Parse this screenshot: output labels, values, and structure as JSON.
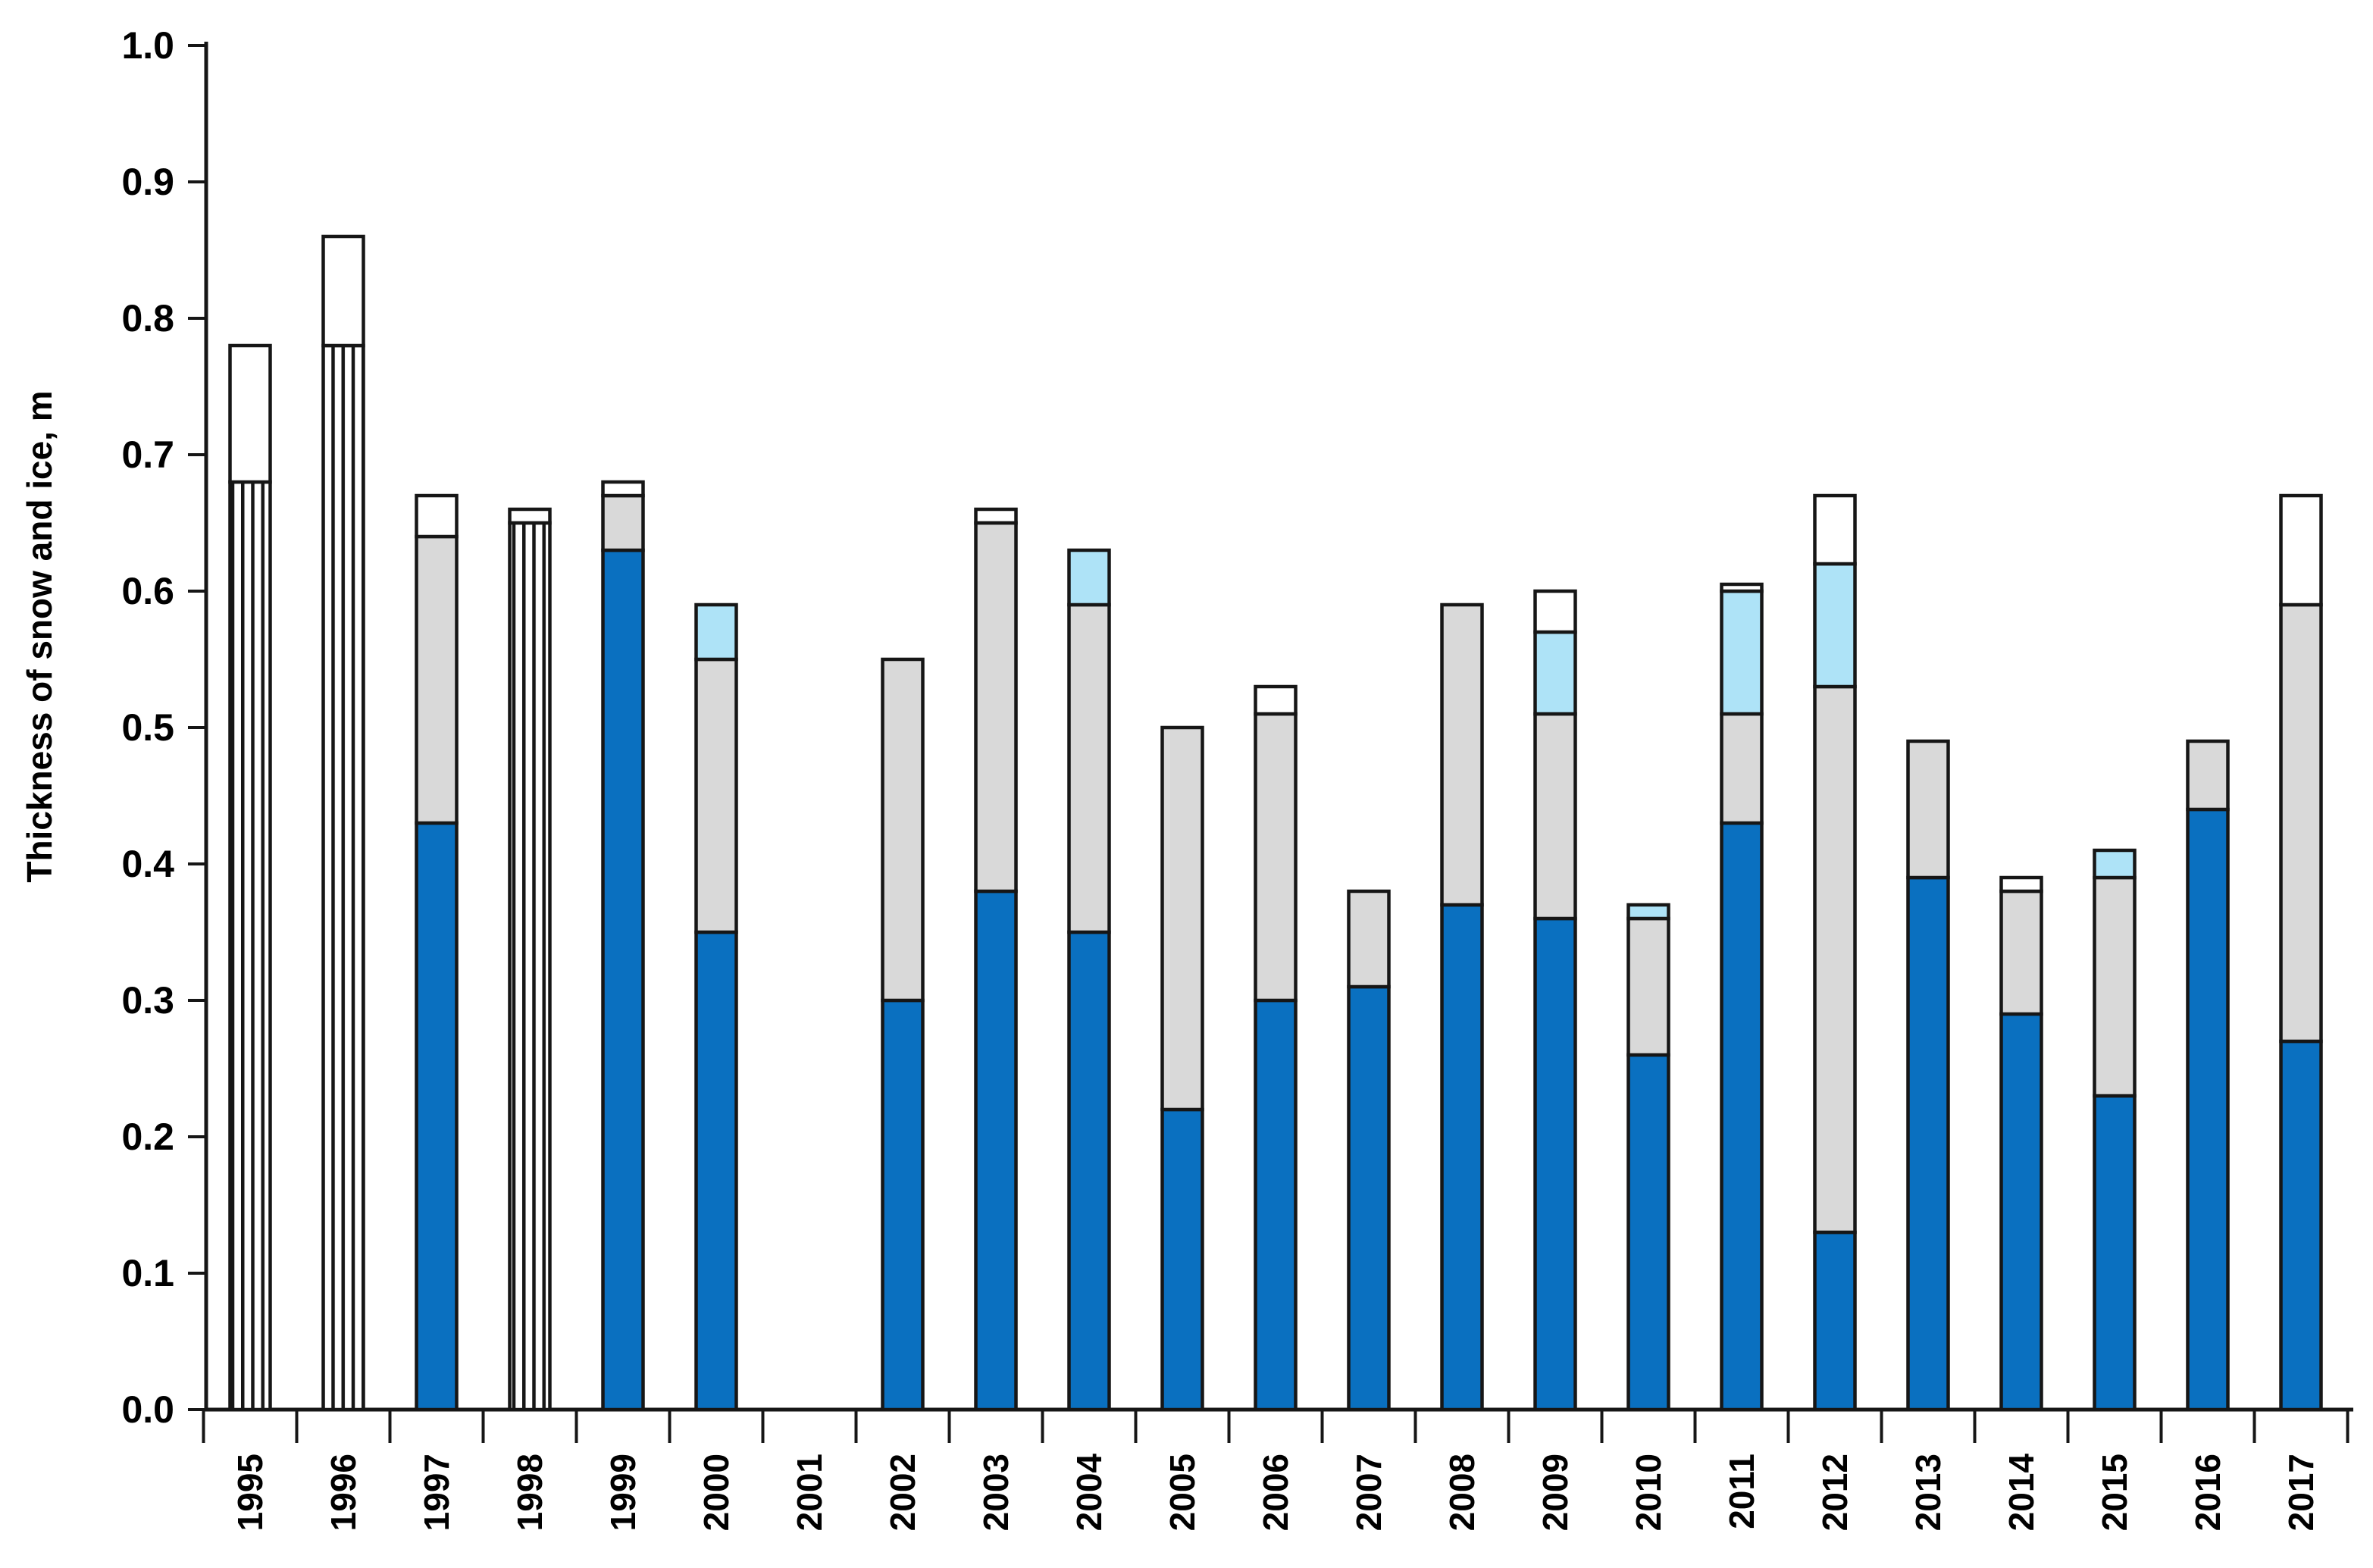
{
  "chart_data": {
    "type": "bar",
    "stacked": true,
    "title": "",
    "xlabel": "",
    "ylabel": "Thickness of snow and ice, m",
    "ylim": [
      0.0,
      1.0
    ],
    "y_tick_step": 0.1,
    "y_tick_labels": [
      "1.0",
      "0.9",
      "0.8",
      "0.7",
      "0.6",
      "0.5",
      "0.4",
      "0.3",
      "0.2",
      "0.1",
      "0.0"
    ],
    "grid": false,
    "legend": "none",
    "x_tick_label_rotation_deg": -90,
    "missing_years": [
      "2001"
    ],
    "colors": {
      "blue": "#0a70c0",
      "gray": "#d9d9d9",
      "light_blue": "#aee3f7",
      "white": "#ffffff",
      "hatched": "white with vertical black stripes",
      "border": "#161616"
    },
    "categories": [
      "1995",
      "1996",
      "1997",
      "1998",
      "1999",
      "2000",
      "2001",
      "2002",
      "2003",
      "2004",
      "2005",
      "2006",
      "2007",
      "2008",
      "2009",
      "2010",
      "2011",
      "2012",
      "2013",
      "2014",
      "2015",
      "2016",
      "2017"
    ],
    "bars": [
      {
        "year": "1995",
        "total": 0.78,
        "segments": [
          {
            "color": "hatched",
            "value": 0.68
          },
          {
            "color": "white",
            "value": 0.1
          }
        ]
      },
      {
        "year": "1996",
        "total": 0.86,
        "segments": [
          {
            "color": "hatched",
            "value": 0.78
          },
          {
            "color": "white",
            "value": 0.08
          }
        ]
      },
      {
        "year": "1997",
        "total": 0.67,
        "segments": [
          {
            "color": "blue",
            "value": 0.43
          },
          {
            "color": "gray",
            "value": 0.21
          },
          {
            "color": "white",
            "value": 0.03
          }
        ]
      },
      {
        "year": "1998",
        "total": 0.66,
        "segments": [
          {
            "color": "hatched",
            "value": 0.65
          },
          {
            "color": "white",
            "value": 0.01
          }
        ]
      },
      {
        "year": "1999",
        "total": 0.68,
        "segments": [
          {
            "color": "blue",
            "value": 0.63
          },
          {
            "color": "gray",
            "value": 0.04
          },
          {
            "color": "white",
            "value": 0.01
          }
        ]
      },
      {
        "year": "2000",
        "total": 0.59,
        "segments": [
          {
            "color": "blue",
            "value": 0.35
          },
          {
            "color": "gray",
            "value": 0.2
          },
          {
            "color": "light_blue",
            "value": 0.04
          }
        ]
      },
      {
        "year": "2001",
        "total": 0.0,
        "segments": []
      },
      {
        "year": "2002",
        "total": 0.55,
        "segments": [
          {
            "color": "blue",
            "value": 0.3
          },
          {
            "color": "gray",
            "value": 0.25
          }
        ]
      },
      {
        "year": "2003",
        "total": 0.66,
        "segments": [
          {
            "color": "blue",
            "value": 0.38
          },
          {
            "color": "gray",
            "value": 0.27
          },
          {
            "color": "white",
            "value": 0.01
          }
        ]
      },
      {
        "year": "2004",
        "total": 0.63,
        "segments": [
          {
            "color": "blue",
            "value": 0.35
          },
          {
            "color": "gray",
            "value": 0.24
          },
          {
            "color": "light_blue",
            "value": 0.04
          }
        ]
      },
      {
        "year": "2005",
        "total": 0.5,
        "segments": [
          {
            "color": "blue",
            "value": 0.22
          },
          {
            "color": "gray",
            "value": 0.28
          }
        ]
      },
      {
        "year": "2006",
        "total": 0.53,
        "segments": [
          {
            "color": "blue",
            "value": 0.3
          },
          {
            "color": "gray",
            "value": 0.21
          },
          {
            "color": "white",
            "value": 0.02
          }
        ]
      },
      {
        "year": "2007",
        "total": 0.38,
        "segments": [
          {
            "color": "blue",
            "value": 0.31
          },
          {
            "color": "gray",
            "value": 0.07
          }
        ]
      },
      {
        "year": "2008",
        "total": 0.59,
        "segments": [
          {
            "color": "blue",
            "value": 0.37
          },
          {
            "color": "gray",
            "value": 0.22
          }
        ]
      },
      {
        "year": "2009",
        "total": 0.6,
        "segments": [
          {
            "color": "blue",
            "value": 0.36
          },
          {
            "color": "gray",
            "value": 0.15
          },
          {
            "color": "light_blue",
            "value": 0.06
          },
          {
            "color": "white",
            "value": 0.03
          }
        ]
      },
      {
        "year": "2010",
        "total": 0.37,
        "segments": [
          {
            "color": "blue",
            "value": 0.26
          },
          {
            "color": "gray",
            "value": 0.1
          },
          {
            "color": "light_blue",
            "value": 0.01
          }
        ]
      },
      {
        "year": "2011",
        "total": 0.605,
        "segments": [
          {
            "color": "blue",
            "value": 0.43
          },
          {
            "color": "gray",
            "value": 0.08
          },
          {
            "color": "light_blue",
            "value": 0.09
          },
          {
            "color": "white",
            "value": 0.005
          }
        ]
      },
      {
        "year": "2012",
        "total": 0.67,
        "segments": [
          {
            "color": "blue",
            "value": 0.13
          },
          {
            "color": "gray",
            "value": 0.4
          },
          {
            "color": "light_blue",
            "value": 0.09
          },
          {
            "color": "white",
            "value": 0.05
          }
        ]
      },
      {
        "year": "2013",
        "total": 0.49,
        "segments": [
          {
            "color": "blue",
            "value": 0.39
          },
          {
            "color": "gray",
            "value": 0.1
          }
        ]
      },
      {
        "year": "2014",
        "total": 0.39,
        "segments": [
          {
            "color": "blue",
            "value": 0.29
          },
          {
            "color": "gray",
            "value": 0.09
          },
          {
            "color": "white",
            "value": 0.01
          }
        ]
      },
      {
        "year": "2015",
        "total": 0.41,
        "segments": [
          {
            "color": "blue",
            "value": 0.23
          },
          {
            "color": "gray",
            "value": 0.16
          },
          {
            "color": "light_blue",
            "value": 0.02
          }
        ]
      },
      {
        "year": "2016",
        "total": 0.49,
        "segments": [
          {
            "color": "blue",
            "value": 0.44
          },
          {
            "color": "gray",
            "value": 0.05
          }
        ]
      },
      {
        "year": "2017",
        "total": 0.67,
        "segments": [
          {
            "color": "blue",
            "value": 0.27
          },
          {
            "color": "gray",
            "value": 0.32
          },
          {
            "color": "white",
            "value": 0.08
          }
        ]
      }
    ]
  }
}
